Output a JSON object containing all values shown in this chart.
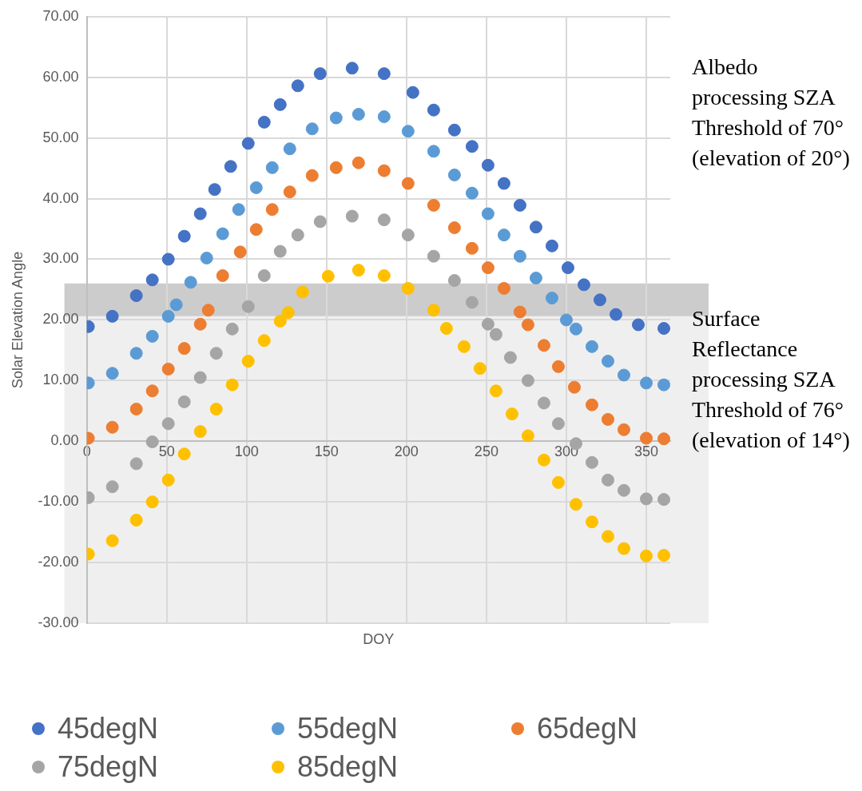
{
  "chart_data": {
    "type": "scatter",
    "xlabel": "DOY",
    "ylabel": "Solar Elevation Angle",
    "xlim": [
      0,
      365
    ],
    "xticks": [
      0,
      50,
      100,
      150,
      200,
      250,
      300,
      350
    ],
    "ylim": [
      -30,
      70
    ],
    "yticks": [
      {
        "value": -30,
        "label": "-30.00"
      },
      {
        "value": -20,
        "label": "-20.00"
      },
      {
        "value": -10,
        "label": "-10.00"
      },
      {
        "value": 0,
        "label": "0.00"
      },
      {
        "value": 10,
        "label": "10.00"
      },
      {
        "value": 20,
        "label": "20.00"
      },
      {
        "value": 30,
        "label": "30.00"
      },
      {
        "value": 40,
        "label": "40.00"
      },
      {
        "value": 50,
        "label": "50.00"
      },
      {
        "value": 60,
        "label": "60.00"
      },
      {
        "value": 70,
        "label": "70.00"
      }
    ],
    "grid": true,
    "legend": "bottom",
    "marker": "circle",
    "bands": [
      {
        "axis": "y",
        "from": -30,
        "to": 20.6,
        "color": "#efefef"
      },
      {
        "axis": "y",
        "from": 20.6,
        "to": 26,
        "color": "#cccccc"
      }
    ],
    "annotations": [
      "Albedo processing SZA Threshold of 70° (elevation of 20°)",
      "Surface Reflectance processing SZA Threshold of 76° (elevation of 14°)"
    ],
    "series": [
      {
        "name": "45degN",
        "color": "#4472c4",
        "x": [
          1,
          16,
          31,
          41,
          51,
          61,
          71,
          80,
          90,
          101,
          111,
          121,
          132,
          146,
          166,
          186,
          204,
          217,
          230,
          241,
          251,
          261,
          271,
          281,
          291,
          301,
          311,
          321,
          331,
          345,
          361
        ],
        "values": [
          18.9,
          20.6,
          24.0,
          26.6,
          30.0,
          33.8,
          37.5,
          41.5,
          45.3,
          49.1,
          52.6,
          55.5,
          58.6,
          60.6,
          61.5,
          60.6,
          57.5,
          54.6,
          51.3,
          48.6,
          45.5,
          42.5,
          38.9,
          35.3,
          32.2,
          28.6,
          25.8,
          23.3,
          20.9,
          19.2,
          18.6
        ]
      },
      {
        "name": "55degN",
        "color": "#5b9bd5",
        "x": [
          1,
          16,
          31,
          41,
          51,
          56,
          65,
          75,
          85,
          95,
          106,
          116,
          127,
          141,
          156,
          170,
          186,
          201,
          217,
          230,
          241,
          251,
          261,
          271,
          281,
          291,
          300,
          306,
          316,
          326,
          336,
          350,
          361
        ],
        "values": [
          9.6,
          11.2,
          14.5,
          17.3,
          20.6,
          22.5,
          26.2,
          30.2,
          34.2,
          38.2,
          41.8,
          45.1,
          48.2,
          51.5,
          53.3,
          53.9,
          53.5,
          51.1,
          47.8,
          43.9,
          40.9,
          37.5,
          34.0,
          30.5,
          26.9,
          23.6,
          20.0,
          18.5,
          15.6,
          13.2,
          10.9,
          9.6,
          9.3
        ]
      },
      {
        "name": "65degN",
        "color": "#ed7d31",
        "x": [
          1,
          16,
          31,
          41,
          51,
          61,
          71,
          76,
          85,
          96,
          106,
          116,
          127,
          141,
          156,
          170,
          186,
          201,
          217,
          230,
          241,
          251,
          261,
          271,
          276,
          286,
          295,
          305,
          316,
          326,
          336,
          350,
          361
        ],
        "values": [
          0.5,
          2.3,
          5.3,
          8.3,
          11.9,
          15.3,
          19.3,
          21.6,
          27.3,
          31.2,
          34.9,
          38.2,
          41.1,
          43.8,
          45.1,
          45.9,
          44.6,
          42.5,
          38.9,
          35.2,
          31.8,
          28.6,
          25.2,
          21.3,
          19.2,
          15.8,
          12.3,
          8.9,
          6.0,
          3.6,
          1.9,
          0.5,
          0.4
        ]
      },
      {
        "name": "75degN",
        "color": "#a5a5a5",
        "x": [
          1,
          16,
          31,
          41,
          51,
          61,
          71,
          81,
          91,
          101,
          111,
          121,
          132,
          146,
          166,
          186,
          201,
          217,
          230,
          241,
          251,
          256,
          265,
          276,
          286,
          295,
          306,
          316,
          326,
          336,
          350,
          361
        ],
        "values": [
          -9.3,
          -7.5,
          -3.7,
          -0.1,
          2.9,
          6.5,
          10.5,
          14.5,
          18.5,
          22.2,
          27.3,
          31.3,
          34.0,
          36.2,
          37.1,
          36.5,
          34.0,
          30.5,
          26.5,
          22.9,
          19.3,
          17.6,
          13.8,
          10.0,
          6.3,
          2.9,
          -0.4,
          -3.5,
          -6.4,
          -8.1,
          -9.5,
          -9.6
        ]
      },
      {
        "name": "85degN",
        "color": "#ffc000",
        "x": [
          1,
          16,
          31,
          41,
          51,
          61,
          71,
          81,
          91,
          101,
          111,
          121,
          126,
          135,
          151,
          170,
          186,
          201,
          217,
          225,
          236,
          246,
          256,
          266,
          276,
          286,
          295,
          306,
          316,
          326,
          336,
          350,
          361
        ],
        "values": [
          -18.6,
          -16.4,
          -13.0,
          -10.0,
          -6.4,
          -2.1,
          1.6,
          5.3,
          9.3,
          13.2,
          16.6,
          19.8,
          21.2,
          24.6,
          27.2,
          28.2,
          27.3,
          25.2,
          21.6,
          18.6,
          15.6,
          12.0,
          8.3,
          4.5,
          0.9,
          -3.1,
          -6.8,
          -10.4,
          -13.3,
          -15.7,
          -17.7,
          -18.9,
          -18.8
        ]
      }
    ]
  }
}
